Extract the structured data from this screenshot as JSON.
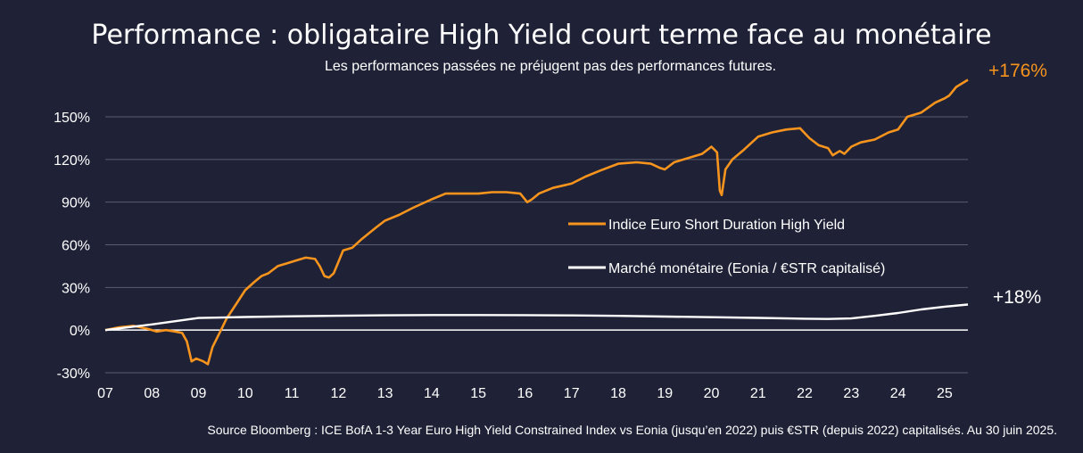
{
  "title": "Performance : obligataire High Yield court terme face au monétaire",
  "subtitle": "Les performances passées ne préjugent pas des performances futures.",
  "source": "Source Bloomberg : ICE BofA 1-3 Year Euro High Yield Constrained Index vs Eonia (jusqu’en 2022) puis €STR (depuis 2022) capitalisés. Au 30 juin 2025.",
  "colors": {
    "background": "#1f2236",
    "hy": "#f7941d",
    "money": "#ffffff",
    "grid": "#5a5d70"
  },
  "chart_data": {
    "type": "line",
    "xlim": [
      2007.0,
      2025.5
    ],
    "ylim": [
      -30,
      165
    ],
    "yticks": [
      -30,
      0,
      30,
      60,
      90,
      120,
      150
    ],
    "ytick_labels": [
      "-30%",
      "0%",
      "30%",
      "60%",
      "90%",
      "120%",
      "150%"
    ],
    "xticks": [
      2007,
      2008,
      2009,
      2010,
      2011,
      2012,
      2013,
      2014,
      2015,
      2016,
      2017,
      2018,
      2019,
      2020,
      2021,
      2022,
      2023,
      2024,
      2025
    ],
    "xtick_labels": [
      "07",
      "08",
      "09",
      "10",
      "11",
      "12",
      "13",
      "14",
      "15",
      "16",
      "17",
      "18",
      "19",
      "20",
      "21",
      "22",
      "23",
      "24",
      "25"
    ],
    "grid": "horizontal",
    "legend_position": "center-right",
    "series": [
      {
        "name": "Indice Euro Short Duration High Yield",
        "color": "#f7941d",
        "end_label": "+176%",
        "x": [
          2007.0,
          2007.3,
          2007.6,
          2007.9,
          2008.1,
          2008.3,
          2008.5,
          2008.65,
          2008.75,
          2008.85,
          2008.95,
          2009.1,
          2009.2,
          2009.3,
          2009.45,
          2009.6,
          2009.8,
          2010.0,
          2010.2,
          2010.35,
          2010.5,
          2010.7,
          2010.9,
          2011.1,
          2011.3,
          2011.5,
          2011.6,
          2011.7,
          2011.8,
          2011.9,
          2012.0,
          2012.1,
          2012.3,
          2012.5,
          2012.8,
          2013.0,
          2013.3,
          2013.6,
          2014.0,
          2014.3,
          2014.6,
          2015.0,
          2015.3,
          2015.6,
          2015.9,
          2016.05,
          2016.15,
          2016.3,
          2016.6,
          2017.0,
          2017.3,
          2017.6,
          2018.0,
          2018.4,
          2018.7,
          2018.9,
          2019.0,
          2019.2,
          2019.5,
          2019.8,
          2020.0,
          2020.12,
          2020.18,
          2020.22,
          2020.3,
          2020.45,
          2020.7,
          2021.0,
          2021.3,
          2021.6,
          2021.9,
          2022.1,
          2022.3,
          2022.5,
          2022.6,
          2022.75,
          2022.85,
          2023.0,
          2023.2,
          2023.5,
          2023.8,
          2024.0,
          2024.2,
          2024.5,
          2024.8,
          2025.0,
          2025.1,
          2025.25,
          2025.5
        ],
        "y": [
          0,
          2,
          3,
          1,
          -1,
          0,
          -1,
          -2,
          -8,
          -22,
          -20,
          -22,
          -24,
          -12,
          -2,
          8,
          18,
          28,
          34,
          38,
          40,
          45,
          47,
          49,
          51,
          50,
          45,
          38,
          37,
          40,
          48,
          56,
          58,
          64,
          72,
          77,
          81,
          86,
          92,
          96,
          96,
          96,
          97,
          97,
          96,
          90,
          92,
          96,
          100,
          103,
          108,
          112,
          117,
          118,
          117,
          114,
          113,
          118,
          121,
          124,
          129,
          125,
          98,
          95,
          113,
          120,
          127,
          136,
          139,
          141,
          142,
          135,
          130,
          128,
          123,
          126,
          124,
          129,
          132,
          134,
          139,
          141,
          150,
          153,
          160,
          163,
          165,
          171,
          176
        ]
      },
      {
        "name": "Marché monétaire (Eonia / €STR capitalisé)",
        "color": "#ffffff",
        "end_label": "+18%",
        "x": [
          2007.0,
          2008.0,
          2009.0,
          2010.0,
          2011.0,
          2012.0,
          2013.0,
          2014.0,
          2015.0,
          2016.0,
          2017.0,
          2018.0,
          2019.0,
          2020.0,
          2021.0,
          2022.0,
          2022.5,
          2023.0,
          2023.5,
          2024.0,
          2024.5,
          2025.0,
          2025.5
        ],
        "y": [
          0,
          4,
          8.5,
          9.2,
          9.7,
          10.1,
          10.4,
          10.6,
          10.6,
          10.5,
          10.3,
          10.0,
          9.5,
          9.1,
          8.6,
          8.0,
          7.8,
          8.2,
          10.0,
          12.0,
          14.5,
          16.5,
          18
        ]
      }
    ]
  }
}
